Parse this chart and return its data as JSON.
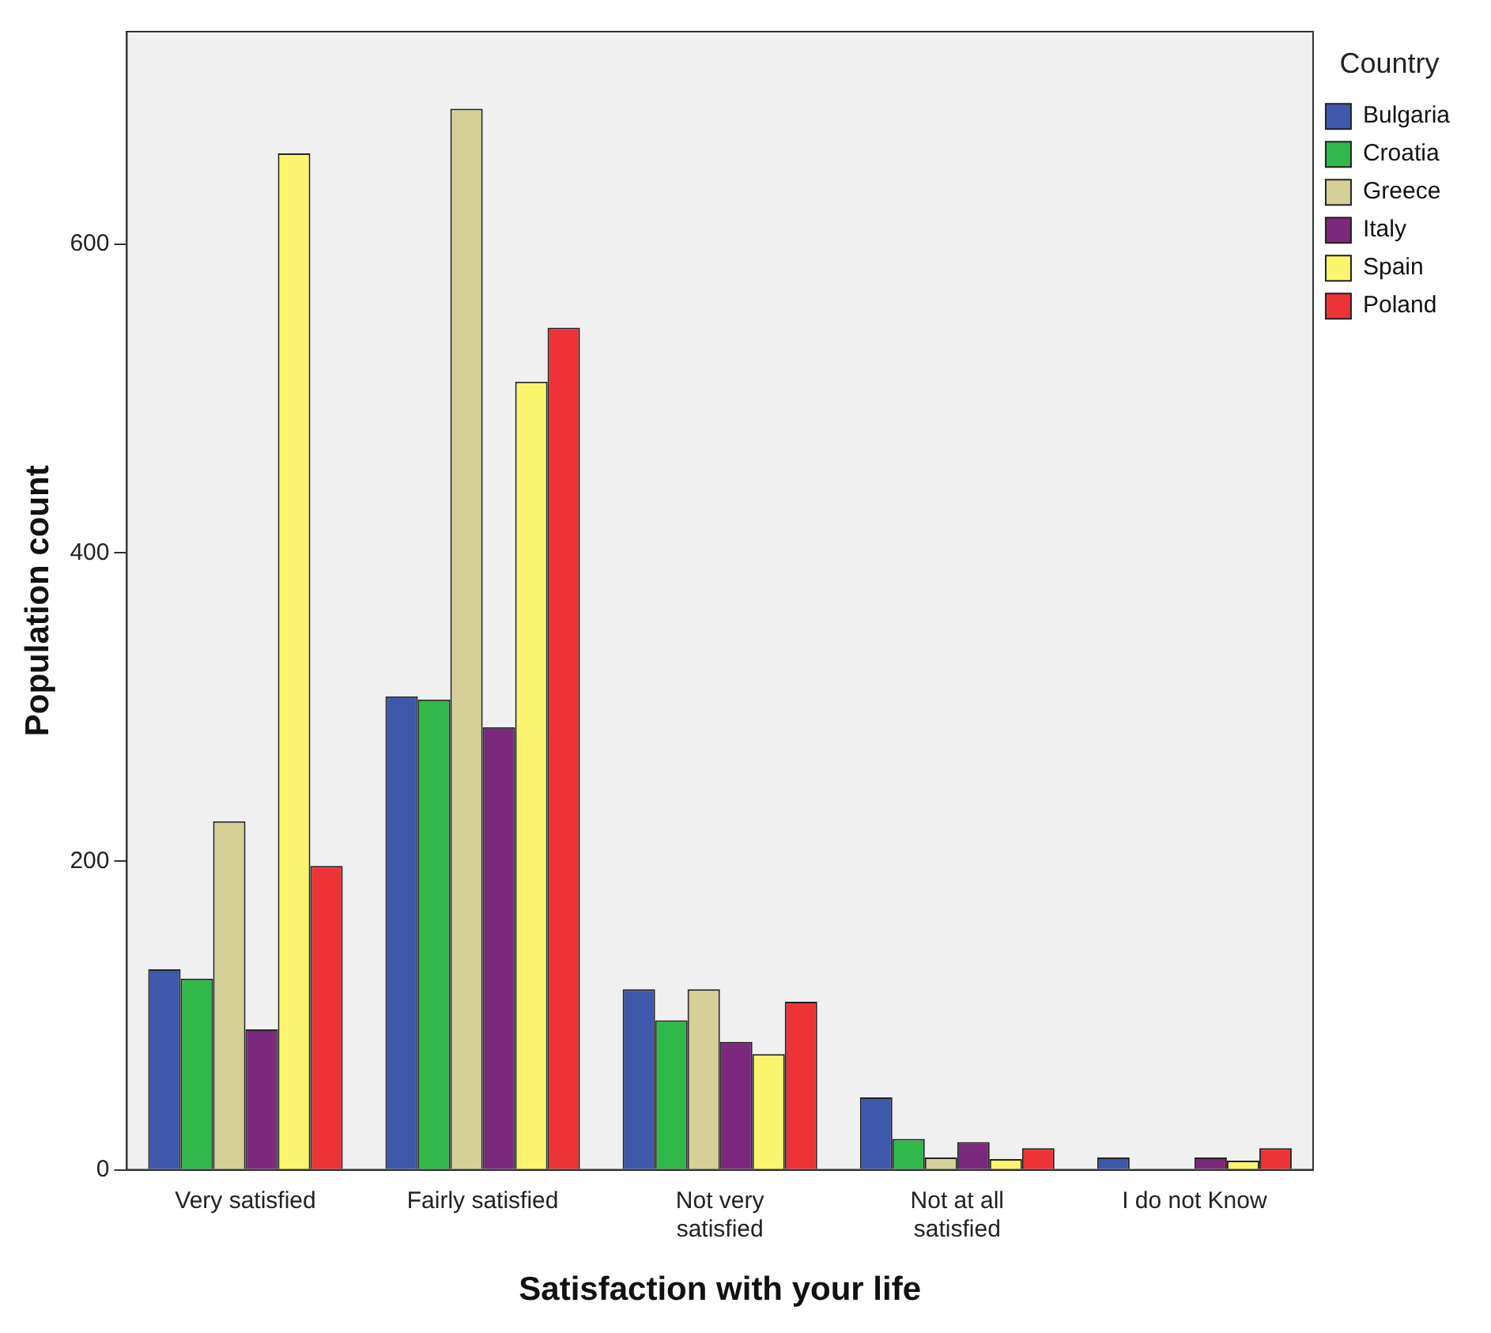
{
  "chart_data": {
    "type": "bar",
    "xlabel": "Satisfaction with your life",
    "ylabel": "Population count",
    "legend_title": "Country",
    "categories": [
      "Very satisfied",
      "Fairly satisfied",
      "Not very satisfied",
      "Not at all satisfied",
      "I do not Know"
    ],
    "series": [
      {
        "name": "Bulgaria",
        "color": "#3e58ac",
        "values": [
          130,
          307,
          117,
          47,
          8
        ]
      },
      {
        "name": "Croatia",
        "color": "#30b84a",
        "values": [
          124,
          305,
          97,
          20,
          0
        ]
      },
      {
        "name": "Greece",
        "color": "#d5d098",
        "values": [
          226,
          688,
          117,
          8,
          0
        ]
      },
      {
        "name": "Italy",
        "color": "#7b287d",
        "values": [
          91,
          287,
          83,
          18,
          8
        ]
      },
      {
        "name": "Spain",
        "color": "#fbf56e",
        "values": [
          659,
          511,
          75,
          7,
          6
        ]
      },
      {
        "name": "Poland",
        "color": "#ee3338",
        "values": [
          197,
          546,
          109,
          14,
          14
        ]
      }
    ],
    "ylim": [
      0,
      738
    ],
    "yticks": [
      0,
      200,
      400,
      600
    ],
    "grid": false,
    "legend": "top right"
  }
}
